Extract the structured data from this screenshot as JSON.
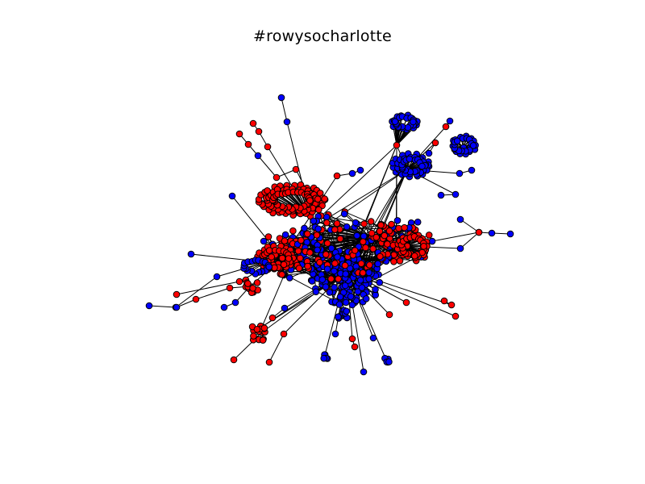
{
  "figure": {
    "title": "#rowysocharlotte"
  },
  "graph": {
    "node_colors": {
      "red": "#ff0000",
      "blue": "#0000ff",
      "edge": "#000000",
      "node_outline": "#000000"
    },
    "node_categories": [
      "red",
      "blue"
    ],
    "layout": "force-directed network"
  }
}
